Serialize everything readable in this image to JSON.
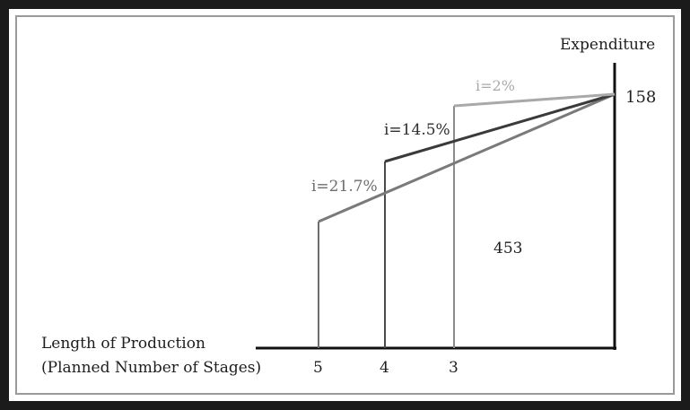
{
  "diagram": {
    "y_axis_label": "Expenditure",
    "top_value": "158",
    "area_value": "453",
    "x_axis_label_line1": "Length of Production",
    "x_axis_label_line2": "(Planned Number of Stages)",
    "ticks": [
      "5",
      "4",
      "3"
    ],
    "lines": [
      {
        "name": "i=2%",
        "stages": 3,
        "color": "#a9a9a9"
      },
      {
        "name": "i=14.5%",
        "stages": 4,
        "color": "#3a3a3a"
      },
      {
        "name": "i=21.7%",
        "stages": 5,
        "color": "#7a7a7a"
      }
    ]
  }
}
